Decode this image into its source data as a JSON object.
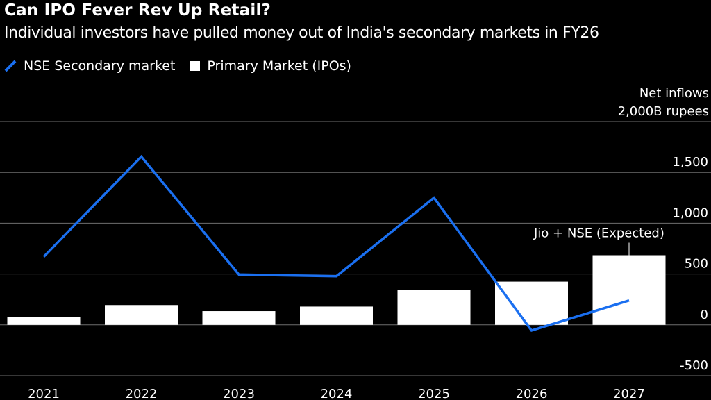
{
  "title": "Can IPO Fever Rev Up Retail?",
  "subtitle": "Individual investors have pulled money out of India's secondary markets in FY26",
  "colors": {
    "background": "#000000",
    "line": "#1a6ff0",
    "bar": "#ffffff",
    "grid": "#6e6e6e"
  },
  "chart_data": {
    "type": "bar",
    "units_line1": "Net inflows",
    "units_line2": "2,000B rupees",
    "categories": [
      "2021",
      "2022",
      "2023",
      "2024",
      "2025",
      "2026",
      "2027"
    ],
    "series": [
      {
        "name": "NSE Secondary market",
        "kind": "line",
        "color": "#1a6ff0",
        "values": [
          670,
          1655,
          495,
          478,
          1250,
          -55,
          240
        ]
      },
      {
        "name": "Primary Market (IPOs)",
        "kind": "bar",
        "color": "#ffffff",
        "values": [
          75,
          195,
          135,
          180,
          345,
          425,
          685
        ]
      }
    ],
    "ylim": [
      -500,
      2000
    ],
    "yticks": [
      {
        "value": 1500,
        "label": "1,500"
      },
      {
        "value": 1000,
        "label": "1,000"
      },
      {
        "value": 500,
        "label": "500"
      },
      {
        "value": 0,
        "label": "0"
      },
      {
        "value": -500,
        "label": "-500"
      }
    ],
    "grid": true,
    "legend_position": "top-left",
    "annotation": {
      "text": "Jio + NSE (Expected)",
      "category": "2027"
    }
  }
}
